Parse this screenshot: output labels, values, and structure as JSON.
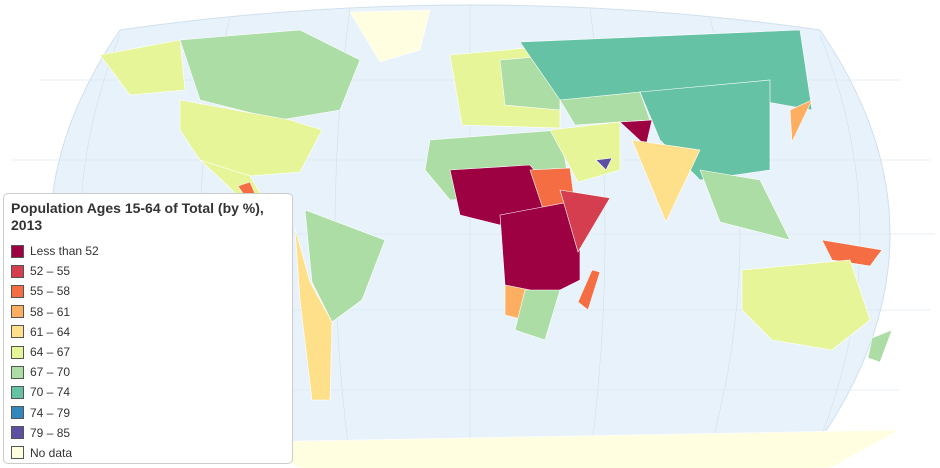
{
  "legend": {
    "title": "Population Ages 15-64 of Total (by %), 2013",
    "items": [
      {
        "label": "Less than 52",
        "color": "#9e0142"
      },
      {
        "label": "52 – 55",
        "color": "#d53e4f"
      },
      {
        "label": "55 – 58",
        "color": "#f46d43"
      },
      {
        "label": "58 – 61",
        "color": "#fdae61"
      },
      {
        "label": "61 – 64",
        "color": "#fee08b"
      },
      {
        "label": "64 – 67",
        "color": "#e6f598"
      },
      {
        "label": "67 – 70",
        "color": "#abdda4"
      },
      {
        "label": "70 – 74",
        "color": "#66c2a5"
      },
      {
        "label": "74 – 79",
        "color": "#3288bd"
      },
      {
        "label": "79 – 85",
        "color": "#5e4fa2"
      },
      {
        "label": "No data",
        "color": "#fffee0"
      }
    ]
  }
}
